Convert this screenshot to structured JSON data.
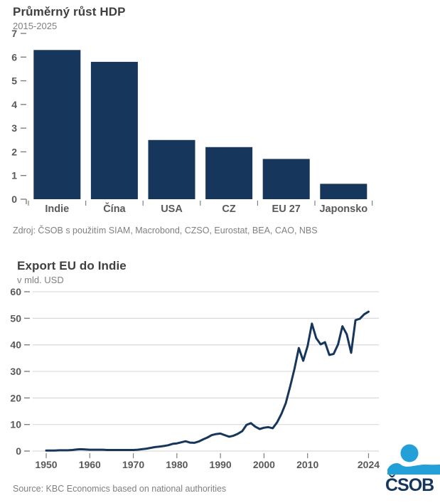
{
  "page": {
    "background": "#ffffff"
  },
  "colors": {
    "navy": "#16365c",
    "title_gray": "#3f3f3f",
    "text_gray": "#808080",
    "axis_gray": "#595959",
    "gridline": "#d9d9d9",
    "tick": "#808080",
    "logo_blue": "#24a0d8"
  },
  "charts": [
    {
      "title": "Průměrný růst HDP",
      "subtitle": "2015-2025",
      "source": "Zdroj: ČSOB s použitím SIAM, Macrobond, CZSO, Eurostat, BEA, CAO, NBS"
    },
    {
      "title": "Export EU do Indie",
      "subtitle": "v mld. USD",
      "source": "Source: KBC Economics based on national authorities"
    }
  ],
  "logo": {
    "text": "ČSOB",
    "figure": "person-over-wave"
  },
  "chart_data": [
    {
      "type": "bar",
      "title": "Průměrný růst HDP",
      "subtitle": "2015-2025",
      "categories": [
        "Indie",
        "Čína",
        "USA",
        "CZ",
        "EU 27",
        "Japonsko"
      ],
      "values": [
        6.3,
        5.8,
        2.5,
        2.2,
        1.7,
        0.65
      ],
      "xlabel": "",
      "ylabel": "",
      "ylim": [
        0,
        7
      ],
      "ytick_step": 1,
      "grid": false,
      "legend": "none",
      "bar_color": "#16365c"
    },
    {
      "type": "line",
      "title": "Export EU do Indie",
      "subtitle": "v mld. USD",
      "xlabel": "",
      "ylabel": "v mld. USD",
      "ylim": [
        0,
        60
      ],
      "ytick_step": 10,
      "xticks": [
        1950,
        1960,
        1970,
        1980,
        1990,
        2000,
        2010,
        2024
      ],
      "grid": true,
      "legend": "none",
      "line_color": "#16365c",
      "x": [
        1950,
        1951,
        1952,
        1953,
        1954,
        1955,
        1956,
        1957,
        1958,
        1959,
        1960,
        1961,
        1962,
        1963,
        1964,
        1965,
        1966,
        1967,
        1968,
        1969,
        1970,
        1971,
        1972,
        1973,
        1974,
        1975,
        1976,
        1977,
        1978,
        1979,
        1980,
        1981,
        1982,
        1983,
        1984,
        1985,
        1986,
        1987,
        1988,
        1989,
        1990,
        1991,
        1992,
        1993,
        1994,
        1995,
        1996,
        1997,
        1998,
        1999,
        2000,
        2001,
        2002,
        2003,
        2004,
        2005,
        2006,
        2007,
        2008,
        2009,
        2010,
        2011,
        2012,
        2013,
        2014,
        2015,
        2016,
        2017,
        2018,
        2019,
        2020,
        2021,
        2022,
        2023,
        2024
      ],
      "values": [
        0.2,
        0.2,
        0.2,
        0.3,
        0.3,
        0.3,
        0.4,
        0.6,
        0.7,
        0.6,
        0.5,
        0.5,
        0.5,
        0.5,
        0.4,
        0.4,
        0.4,
        0.4,
        0.4,
        0.4,
        0.4,
        0.5,
        0.7,
        0.9,
        1.2,
        1.5,
        1.7,
        1.9,
        2.2,
        2.7,
        2.9,
        3.3,
        3.7,
        3.2,
        3.1,
        3.6,
        4.4,
        5.1,
        6.0,
        6.4,
        6.6,
        6.0,
        5.4,
        5.8,
        6.5,
        7.5,
        9.9,
        10.5,
        9.2,
        8.3,
        8.8,
        9.0,
        8.6,
        10.8,
        14.0,
        18.0,
        24.3,
        31.0,
        38.8,
        34.0,
        39.5,
        48.0,
        42.5,
        40.2,
        41.0,
        36.2,
        36.6,
        40.2,
        47.0,
        44.0,
        37.0,
        49.3,
        49.8,
        51.5,
        52.5
      ]
    }
  ]
}
